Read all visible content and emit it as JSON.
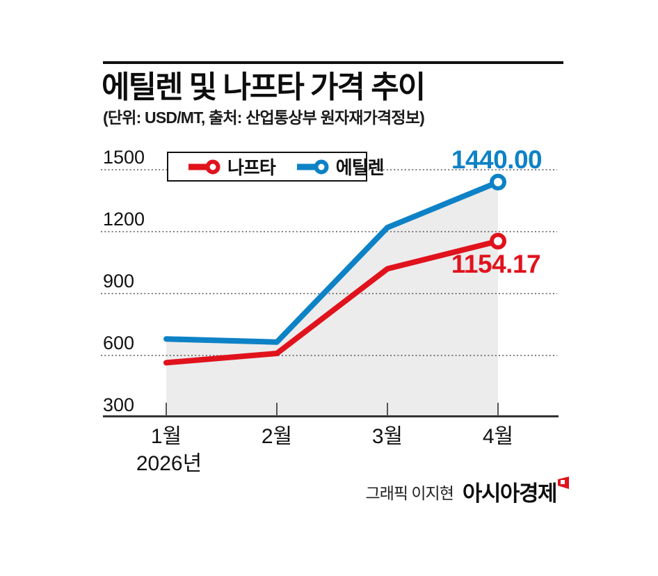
{
  "header": {
    "title": "에틸렌 및 나프타 가격 추이",
    "subtitle": "(단위: USD/MT, 출처: 산업통상부 원자재가격정보)"
  },
  "legend": {
    "items": [
      {
        "label": "나프타",
        "color": "#e0131d"
      },
      {
        "label": "에틸렌",
        "color": "#0d82c6"
      }
    ]
  },
  "colors": {
    "naphtha": "#e0131d",
    "ethylene": "#0d82c6",
    "area": "#ececec",
    "grid": "#555555",
    "axis": "#333333",
    "tick": "#555555"
  },
  "footer": {
    "credit": "그래픽 이지현",
    "brand": "아시아경제"
  },
  "chart_data": {
    "type": "line",
    "title": "에틸렌 및 나프타 가격 추이",
    "unit_source": "(단위: USD/MT, 출처: 산업통상부 원자재가격정보)",
    "categories": [
      "1월",
      "2월",
      "3월",
      "4월"
    ],
    "x_axis_year": "2026년",
    "series": [
      {
        "name": "나프타",
        "color": "#e0131d",
        "values": [
          565,
          610,
          1020,
          1154.17
        ]
      },
      {
        "name": "에틸렌",
        "color": "#0d82c6",
        "values": [
          680,
          665,
          1220,
          1440.0
        ]
      }
    ],
    "annotations": [
      {
        "series": "에틸렌",
        "text": "1440.00"
      },
      {
        "series": "나프타",
        "text": "1154.17"
      }
    ],
    "ylim": [
      300,
      1500
    ],
    "yticks": [
      300,
      600,
      900,
      1200,
      1500
    ],
    "grid": "dotted-horizontal",
    "legend_position": "top-left-box",
    "area_fill_under": "에틸렌",
    "endpoint_marker": "open-circle"
  }
}
